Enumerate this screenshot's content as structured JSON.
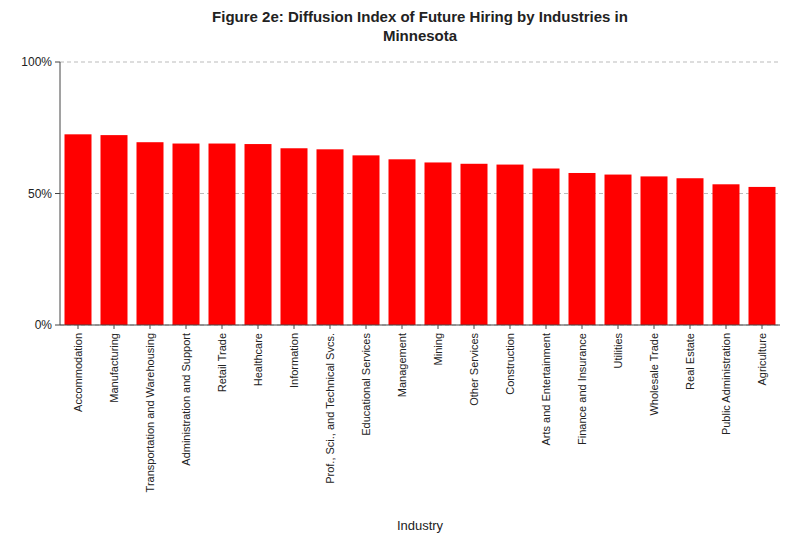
{
  "chart_data": {
    "type": "bar",
    "title": "Figure 2e: Diffusion Index of Future Hiring by Industries in\nMinnesota",
    "categories": [
      "Accommodation",
      "Manufacturing",
      "Transportation and Warehousing",
      "Administration and Support",
      "Retail Trade",
      "Healthcare",
      "Information",
      "Prof., Sci., and Technical Svcs.",
      "Educational Services",
      "Management",
      "Mining",
      "Other Services",
      "Construction",
      "Arts and Entertainment",
      "Finance and Insurance",
      "Utilities",
      "Wholesale Trade",
      "Real Estate",
      "Public Administration",
      "Agriculture"
    ],
    "values": [
      0.725,
      0.722,
      0.695,
      0.69,
      0.69,
      0.688,
      0.672,
      0.668,
      0.645,
      0.63,
      0.618,
      0.613,
      0.61,
      0.595,
      0.578,
      0.572,
      0.565,
      0.558,
      0.535,
      0.525
    ],
    "color": "#FF0000",
    "xlabel": "Industry",
    "ylim": [
      0,
      1.0
    ],
    "yticks": [
      {
        "value": 0.0,
        "label": "0%"
      },
      {
        "value": 0.5,
        "label": "50%"
      },
      {
        "value": 1.0,
        "label": "100%"
      }
    ],
    "grid": true
  }
}
